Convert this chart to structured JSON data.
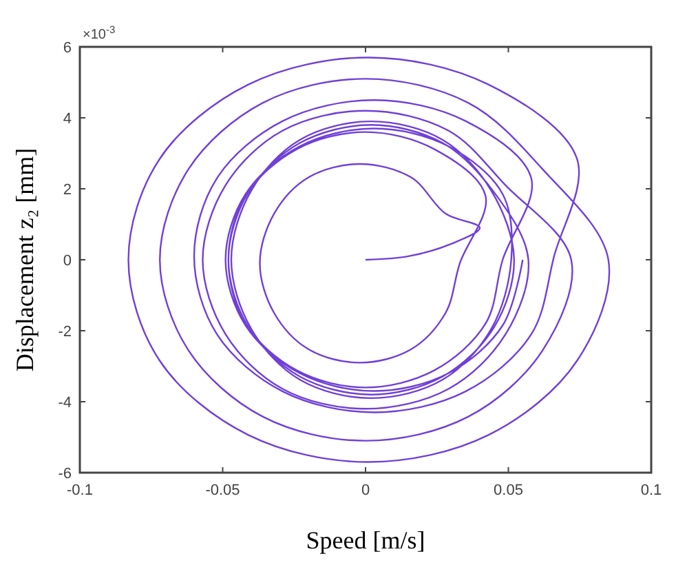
{
  "chart_data": {
    "type": "line",
    "xlabel": "Speed [m/s]",
    "ylabel": "Displacement z₂ [mm]",
    "annotations": [
      "×10$^{-3}$"
    ],
    "xlim": [
      -0.1,
      0.1
    ],
    "xticks": [
      -0.1,
      -0.05,
      0,
      0.05,
      0.1
    ],
    "ylim": [
      -6,
      6
    ],
    "yticks": [
      -6,
      -4,
      -2,
      0,
      2,
      4,
      6
    ],
    "grid": false,
    "marker": "none",
    "line_style": "solid",
    "series": [
      {
        "color": "#7040d8",
        "x": [
          0,
          0.015,
          0.03,
          0.04,
          0.028,
          0.016,
          -0.002,
          -0.02,
          -0.032,
          -0.037,
          -0.032,
          -0.02,
          -0.002,
          0.016,
          0.028,
          0.033,
          0.042,
          0.024,
          0,
          -0.024,
          -0.042,
          -0.048,
          -0.042,
          -0.024,
          0,
          0.024,
          0.042,
          0.048,
          0.058,
          0.035,
          0.003,
          -0.029,
          -0.052,
          -0.06,
          -0.052,
          -0.029,
          0.003,
          0.035,
          0.058,
          0.066,
          0.074,
          0.043,
          0.001,
          -0.041,
          -0.072,
          -0.083,
          -0.072,
          -0.041,
          0.001,
          0.043,
          0.074,
          0.085,
          0.062,
          0.036,
          0,
          -0.036,
          -0.062,
          -0.072,
          -0.062,
          -0.036,
          0,
          0.036,
          0.062,
          0.072,
          0.049,
          0.029,
          0,
          -0.029,
          -0.049,
          -0.057,
          -0.049,
          -0.029,
          0,
          0.029,
          0.049,
          0.057,
          0.045,
          0.027,
          0.002,
          -0.023,
          -0.041,
          -0.048,
          -0.041,
          -0.023,
          0.002,
          0.027,
          0.045,
          0.052,
          0.044,
          0.027,
          0.002,
          -0.023,
          -0.04,
          -0.047,
          -0.04,
          -0.023,
          0.002,
          0.027,
          0.044,
          0.051,
          0.048,
          0.029,
          0.003,
          -0.023,
          -0.042,
          -0.049,
          -0.042,
          -0.023,
          0.003,
          0.029,
          0.048,
          0.055
        ],
        "values": [
          0,
          0.1,
          0.45,
          0.9,
          1.3,
          2.32,
          2.7,
          2.32,
          1.3,
          -0.1,
          -1.5,
          -2.52,
          -2.9,
          -2.52,
          -1.5,
          -0.1,
          1.8,
          3.12,
          3.6,
          3.12,
          1.8,
          0,
          -1.8,
          -3.12,
          -3.6,
          -3.12,
          -1.8,
          0,
          2.3,
          3.91,
          4.5,
          3.91,
          2.3,
          0.1,
          -2.1,
          -3.71,
          -4.3,
          -3.71,
          -2.1,
          0.1,
          2.85,
          4.94,
          5.7,
          4.94,
          2.85,
          0,
          -2.85,
          -4.94,
          -5.7,
          -4.94,
          -2.85,
          0,
          2.55,
          4.42,
          5.1,
          4.42,
          2.55,
          0,
          -2.55,
          -4.42,
          -5.1,
          -4.42,
          -2.55,
          0,
          2.1,
          3.64,
          4.2,
          3.64,
          2.1,
          0,
          -2.1,
          -3.64,
          -4.2,
          -3.64,
          -2.1,
          0,
          1.9,
          3.29,
          3.8,
          3.29,
          1.9,
          0,
          -1.9,
          -3.29,
          -3.8,
          -3.29,
          -1.9,
          0,
          1.95,
          3.38,
          3.9,
          3.38,
          1.95,
          0,
          -1.95,
          -3.38,
          -3.9,
          -3.38,
          -1.95,
          0,
          1.85,
          3.2,
          3.7,
          3.2,
          1.85,
          0,
          -1.85,
          -3.2,
          -3.7,
          -3.2,
          -1.85,
          0
        ]
      }
    ]
  }
}
